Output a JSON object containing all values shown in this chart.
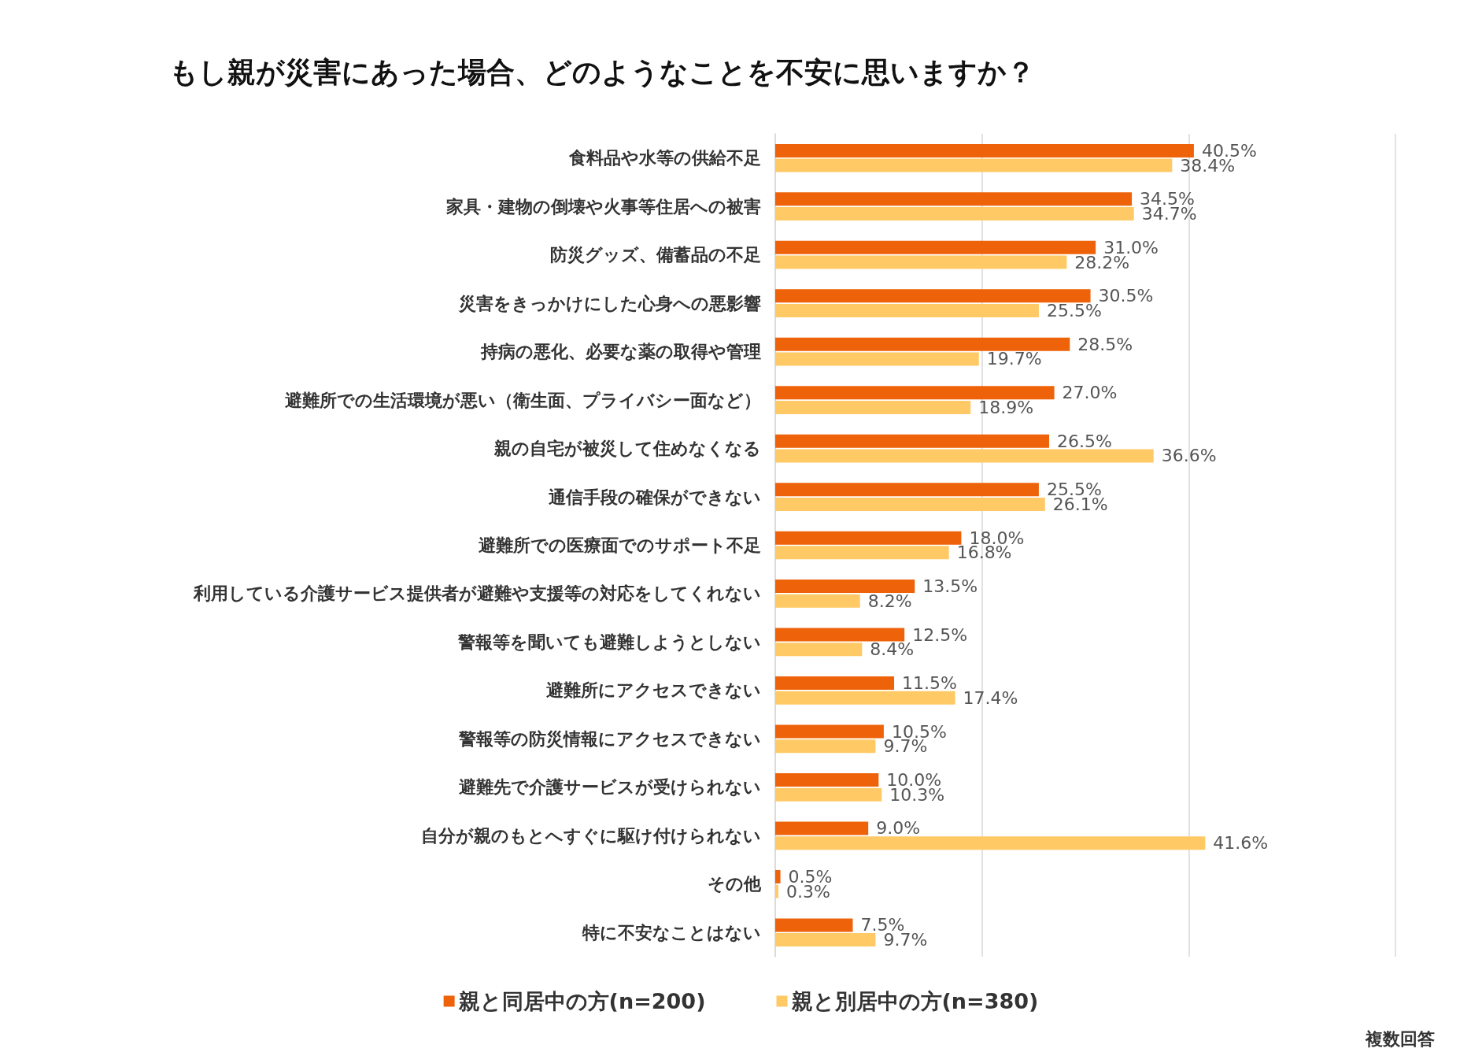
{
  "chart_data": {
    "type": "bar",
    "orientation": "horizontal",
    "title": "もし親が災害にあった場合、どのようなことを不安に思いますか？",
    "categories": [
      "食料品や水等の供給不足",
      "家具・建物の倒壊や火事等住居への被害",
      "防災グッズ、備蓄品の不足",
      "災害をきっかけにした心身への悪影響",
      "持病の悪化、必要な薬の取得や管理",
      "避難所での生活環境が悪い（衛生面、プライバシー面など）",
      "親の自宅が被災して住めなくなる",
      "通信手段の確保ができない",
      "避難所での医療面でのサポート不足",
      "利用している介護サービス提供者が避難や支援等の対応をしてくれない",
      "警報等を聞いても避難しようとしない",
      "避難所にアクセスできない",
      "警報等の防災情報にアクセスできない",
      "避難先で介護サービスが受けられない",
      "自分が親のもとへすぐに駆け付けられない",
      "その他",
      "特に不安なことはない"
    ],
    "series": [
      {
        "name": "親と同居中の方(n=200)",
        "color": "#ee6209",
        "values": [
          40.5,
          34.5,
          31.0,
          30.5,
          28.5,
          27.0,
          26.5,
          25.5,
          18.0,
          13.5,
          12.5,
          11.5,
          10.5,
          10.0,
          9.0,
          0.5,
          7.5
        ],
        "value_labels": [
          "40.5%",
          "34.5%",
          "31.0%",
          "30.5%",
          "28.5%",
          "27.0%",
          "26.5%",
          "25.5%",
          "18.0%",
          "13.5%",
          "12.5%",
          "11.5%",
          "10.5%",
          "10.0%",
          "9.0%",
          "0.5%",
          "7.5%"
        ]
      },
      {
        "name": "親と別居中の方(n=380)",
        "color": "#ffc965",
        "values": [
          38.4,
          34.7,
          28.2,
          25.5,
          19.7,
          18.9,
          36.6,
          26.1,
          16.8,
          8.2,
          8.4,
          17.4,
          9.7,
          10.3,
          41.6,
          0.3,
          9.7
        ],
        "value_labels": [
          "38.4%",
          "34.7%",
          "28.2%",
          "25.5%",
          "19.7%",
          "18.9%",
          "36.6%",
          "26.1%",
          "16.8%",
          "8.2%",
          "8.4%",
          "17.4%",
          "9.7%",
          "10.3%",
          "41.6%",
          "0.3%",
          "9.7%"
        ]
      }
    ],
    "xlim": [
      0,
      60
    ],
    "xticks": [
      {
        "value": 0,
        "label": null
      },
      {
        "value": 20,
        "label": null
      },
      {
        "value": 40,
        "label": null
      },
      {
        "value": 60,
        "label": null
      }
    ],
    "grid": "x",
    "legend": "bottom",
    "tick_labels": "y",
    "annotations": [
      "複数回答"
    ]
  }
}
